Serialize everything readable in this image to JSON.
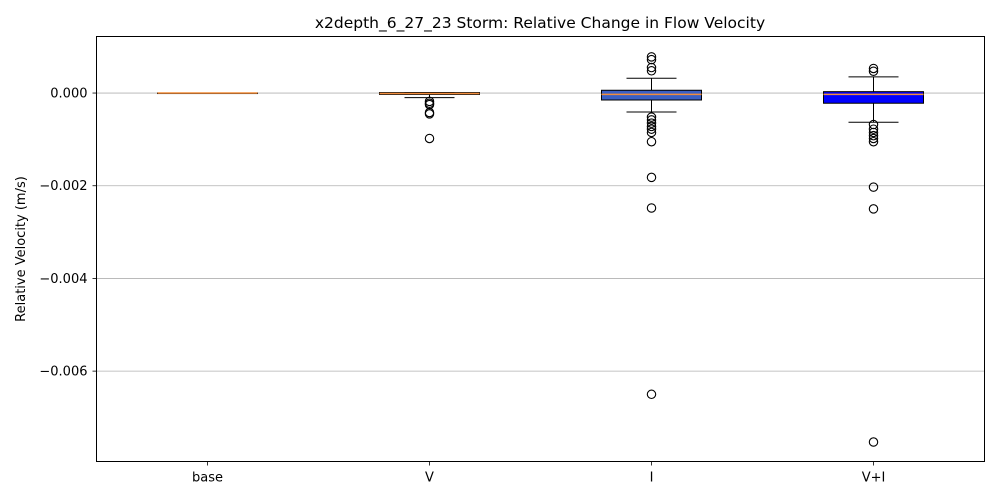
{
  "chart_data": {
    "type": "box",
    "title": "x2depth_6_27_23 Storm: Relative Change in Flow Velocity",
    "xlabel": "",
    "ylabel": "Relative Velocity (m/s)",
    "categories": [
      "base",
      "V",
      "I",
      "V+I"
    ],
    "ylim": [
      -0.00795,
      0.00122
    ],
    "yticks": [
      0.0,
      -0.002,
      -0.004,
      -0.006
    ],
    "ytick_labels": [
      "0.000",
      "−0.002",
      "−0.004",
      "−0.006"
    ],
    "grid": "horizontal",
    "boxes": [
      {
        "category": "base",
        "q1": 0.0,
        "median": 0.0,
        "q3": 0.0,
        "whisker_low": 0.0,
        "whisker_high": 0.0,
        "outliers": [],
        "fill": "#ffffff"
      },
      {
        "category": "V",
        "q1": -3e-05,
        "median": -1e-05,
        "q3": 1e-05,
        "whisker_low": -0.0001,
        "whisker_high": 1e-05,
        "outliers": [
          -0.00018,
          -0.00022,
          -0.00025,
          -0.00042,
          -0.00045,
          -0.00098
        ],
        "fill": "#ffffff"
      },
      {
        "category": "I",
        "q1": -0.00015,
        "median": -3e-05,
        "q3": 6e-05,
        "whisker_low": -0.00041,
        "whisker_high": 0.00032,
        "outliers": [
          0.00078,
          0.00072,
          0.00055,
          0.00048,
          -0.00052,
          -0.00058,
          -0.00065,
          -0.00072,
          -0.00078,
          -0.00085,
          -0.00105,
          -0.00182,
          -0.00248,
          -0.0065
        ],
        "fill": "#3b5fc4"
      },
      {
        "category": "V+I",
        "q1": -0.00022,
        "median": -3e-05,
        "q3": 3e-05,
        "whisker_low": -0.00063,
        "whisker_high": 0.00035,
        "outliers": [
          0.00053,
          0.00047,
          -0.00068,
          -0.00078,
          -0.00085,
          -0.00092,
          -0.00098,
          -0.00105,
          -0.00203,
          -0.0025,
          -0.00753
        ],
        "fill": "#0000ff"
      }
    ],
    "median_color": "#f28d3c"
  }
}
